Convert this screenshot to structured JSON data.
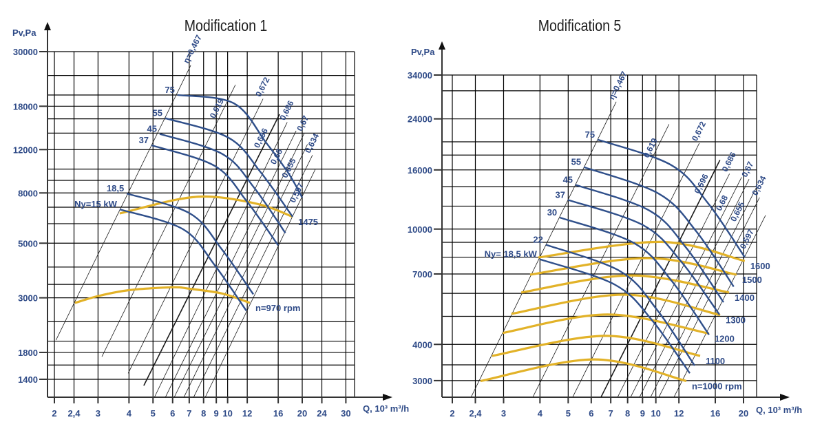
{
  "chart_data": [
    {
      "type": "line",
      "title": "Modification 1",
      "x_axis": {
        "label": "Q, 10³ m³/h",
        "scale": "log",
        "ticks": [
          2,
          2.4,
          3,
          4,
          5,
          6,
          7,
          8,
          9,
          10,
          12,
          16,
          20,
          24,
          30
        ],
        "tick_labels": [
          "2",
          "2,4",
          "3",
          "4",
          "5",
          "6",
          "7",
          "8",
          "9",
          "10",
          "12",
          "16",
          "20",
          "24",
          "30"
        ]
      },
      "y_axis": {
        "label": "Pv,Pa",
        "scale": "log",
        "ticks": [
          30000,
          18000,
          12000,
          8000,
          5000,
          3000,
          1800,
          1400
        ],
        "tick_labels": [
          "30000",
          "18000",
          "12000",
          "8000",
          "5000",
          "3000",
          "1800",
          "1400"
        ],
        "gridlines": [
          30000,
          24000,
          20000,
          18000,
          16000,
          14000,
          12000,
          10000,
          9000,
          8000,
          7000,
          6000,
          5000,
          4000,
          3400,
          3000,
          2400,
          2000,
          1800,
          1600,
          1400
        ]
      },
      "grid": true,
      "efficiency_lines": [
        {
          "label": "η=0,467",
          "points": [
            [
              2.03,
              2020
            ],
            [
              7.1,
              26400
            ]
          ]
        },
        {
          "label": "0,619",
          "points": [
            [
              3.11,
              1730
            ],
            [
              10.75,
              22000
            ]
          ]
        },
        {
          "label": "0,672",
          "points": [
            [
              3.97,
              1480
            ],
            [
              13.9,
              19300
            ]
          ]
        },
        {
          "label": "0,696",
          "bold": true,
          "points": [
            [
              4.59,
              1320
            ],
            [
              16.2,
              16700
            ]
          ]
        },
        {
          "label": "0,686",
          "points": [
            [
              5.06,
              1180
            ],
            [
              17.4,
              15500
            ]
          ]
        },
        {
          "label": "0,68",
          "points": [
            [
              5.6,
              1180
            ],
            [
              18.9,
              14300
            ]
          ]
        },
        {
          "label": "0,67",
          "points": [
            [
              6.08,
              1180
            ],
            [
              20.4,
              14000
            ]
          ]
        },
        {
          "label": "0,655",
          "points": [
            [
              6.65,
              1180
            ],
            [
              21.0,
              12600
            ]
          ]
        },
        {
          "label": "0,634",
          "points": [
            [
              7.28,
              1180
            ],
            [
              22.0,
              11400
            ]
          ]
        },
        {
          "label": "0,597",
          "points": [
            [
              8.11,
              1180
            ],
            [
              22.6,
              10000
            ]
          ]
        }
      ],
      "power_curves": [
        {
          "label": "75",
          "points": [
            [
              6.28,
              20000
            ],
            [
              10.6,
              18500
            ],
            [
              14.3,
              12800
            ],
            [
              17.7,
              9530
            ],
            [
              20,
              7660
            ]
          ]
        },
        {
          "label": "55",
          "points": [
            [
              5.6,
              16100
            ],
            [
              10.1,
              13400
            ],
            [
              13.6,
              9700
            ],
            [
              18.3,
              6400
            ]
          ]
        },
        {
          "label": "45",
          "points": [
            [
              5.32,
              13900
            ],
            [
              9.55,
              11500
            ],
            [
              12.8,
              8400
            ],
            [
              17.1,
              5500
            ]
          ]
        },
        {
          "label": "37",
          "points": [
            [
              4.93,
              12500
            ],
            [
              8.87,
              10300
            ],
            [
              11.9,
              7440
            ],
            [
              16.0,
              4900
            ]
          ]
        },
        {
          "label": "18,5",
          "points": [
            [
              3.92,
              7960
            ],
            [
              7.05,
              6600
            ],
            [
              9.46,
              4730
            ],
            [
              12.7,
              3100
            ]
          ]
        },
        {
          "label": "Ny=15 kW",
          "points": [
            [
              3.67,
              6860
            ],
            [
              6.6,
              5700
            ],
            [
              8.87,
              4070
            ],
            [
              11.9,
              2660
            ]
          ]
        }
      ],
      "speed_curves": [
        {
          "label": "1475",
          "points": [
            [
              3.67,
              6600
            ],
            [
              6.37,
              7550
            ],
            [
              8.93,
              7700
            ],
            [
              13.7,
              7150
            ],
            [
              18.3,
              6400
            ]
          ]
        },
        {
          "label": "n=970 rpm",
          "points": [
            [
              2.42,
              2860
            ],
            [
              3.01,
              3050
            ],
            [
              4.02,
              3225
            ],
            [
              6.0,
              3310
            ],
            [
              6.92,
              3270
            ],
            [
              9.53,
              3120
            ],
            [
              12.3,
              2860
            ]
          ]
        }
      ]
    },
    {
      "type": "line",
      "title": "Modification 5",
      "x_axis": {
        "label": "Q, 10³ m³/h",
        "scale": "log",
        "ticks": [
          2,
          2.4,
          3,
          4,
          5,
          6,
          7,
          8,
          9,
          10,
          12,
          16,
          20
        ],
        "tick_labels": [
          "2",
          "2,4",
          "3",
          "4",
          "5",
          "6",
          "7",
          "8",
          "9",
          "10",
          "12",
          "16",
          "20"
        ]
      },
      "y_axis": {
        "label": "Pv,Pa",
        "scale": "log",
        "ticks": [
          34000,
          24000,
          16000,
          10000,
          7000,
          4000,
          3000
        ],
        "tick_labels": [
          "34000",
          "24000",
          "16000",
          "10000",
          "7000",
          "4000",
          "3000"
        ],
        "gridlines": [
          34000,
          30000,
          24000,
          20000,
          18000,
          16000,
          14000,
          12000,
          10000,
          9000,
          8000,
          7000,
          6000,
          5000,
          4000,
          3400,
          3000
        ]
      },
      "grid": true,
      "efficiency_lines": [
        {
          "label": "η=0,467",
          "points": [
            [
              2.32,
              2630
            ],
            [
              7.31,
              27500
            ]
          ]
        },
        {
          "label": "0,619",
          "points": [
            [
              3.78,
              2630
            ],
            [
              11.1,
              23000
            ]
          ]
        },
        {
          "label": "0,672",
          "points": [
            [
              5.18,
              2630
            ],
            [
              14.1,
              19790
            ]
          ]
        },
        {
          "label": "0,696",
          "bold": true,
          "points": [
            [
              6.48,
              2630
            ],
            [
              16.6,
              17310
            ]
          ]
        },
        {
          "label": "0,686",
          "points": [
            [
              7.39,
              2630
            ],
            [
              17.9,
              15520
            ]
          ]
        },
        {
          "label": "0,68",
          "points": [
            [
              8.19,
              2630
            ],
            [
              19.7,
              15100
            ]
          ]
        },
        {
          "label": "0,67",
          "points": [
            [
              8.79,
              2630
            ],
            [
              20.9,
              14860
            ]
          ]
        },
        {
          "label": "0,655",
          "points": [
            [
              9.59,
              2630
            ],
            [
              22.1,
              13860
            ]
          ]
        },
        {
          "label": "0,634",
          "points": [
            [
              10.24,
              2630
            ],
            [
              22.7,
              12850
            ]
          ]
        },
        {
          "label": "0,597",
          "points": [
            [
              11.54,
              2630
            ],
            [
              23.8,
              11150
            ]
          ]
        }
      ],
      "power_curves": [
        {
          "label": "75",
          "points": [
            [
              6.31,
              20360
            ],
            [
              11.29,
              16630
            ],
            [
              15.11,
              12270
            ],
            [
              20.2,
              8000
            ]
          ]
        },
        {
          "label": "55",
          "points": [
            [
              5.66,
              16360
            ],
            [
              10.24,
              13240
            ],
            [
              13.78,
              9800
            ],
            [
              18.5,
              6330
            ]
          ]
        },
        {
          "label": "45",
          "points": [
            [
              5.3,
              14210
            ],
            [
              9.51,
              11580
            ],
            [
              12.73,
              8600
            ],
            [
              17.08,
              5590
            ]
          ]
        },
        {
          "label": "37",
          "points": [
            [
              4.99,
              12610
            ],
            [
              9.08,
              10290
            ],
            [
              12.25,
              7700
            ],
            [
              16.53,
              5070
            ]
          ]
        },
        {
          "label": "30",
          "points": [
            [
              4.68,
              10960
            ],
            [
              8.44,
              8930
            ],
            [
              11.35,
              6610
            ],
            [
              15.23,
              4320
            ]
          ]
        },
        {
          "label": "22",
          "points": [
            [
              4.19,
              8830
            ],
            [
              7.55,
              7150
            ],
            [
              10.13,
              5240
            ],
            [
              13.59,
              3380
            ]
          ]
        },
        {
          "label": "Ny= 18,5 kW",
          "points": [
            [
              3.99,
              7870
            ],
            [
              7.23,
              6430
            ],
            [
              9.73,
              4830
            ],
            [
              13.08,
              3180
            ]
          ]
        }
      ],
      "speed_curves": [
        {
          "label": "1600",
          "points": [
            [
              3.95,
              7980
            ],
            [
              10.41,
              9030
            ],
            [
              20.2,
              7760
            ]
          ]
        },
        {
          "label": "1500",
          "points": [
            [
              3.7,
              6960
            ],
            [
              9.34,
              7940
            ],
            [
              18.93,
              6960
            ]
          ]
        },
        {
          "label": "1400",
          "points": [
            [
              3.45,
              6040
            ],
            [
              8.24,
              6920
            ],
            [
              17.84,
              6040
            ]
          ]
        },
        {
          "label": "1300",
          "points": [
            [
              3.19,
              5100
            ],
            [
              7.8,
              5940
            ],
            [
              16.63,
              5050
            ]
          ]
        },
        {
          "label": "1200",
          "points": [
            [
              2.98,
              4380
            ],
            [
              6.84,
              5070
            ],
            [
              15.23,
              4360
            ]
          ]
        },
        {
          "label": "1100",
          "points": [
            [
              2.74,
              3650
            ],
            [
              6.73,
              4280
            ],
            [
              14.19,
              3650
            ]
          ]
        },
        {
          "label": "n=1000 rpm",
          "points": [
            [
              2.5,
              2990
            ],
            [
              6.14,
              3550
            ],
            [
              12.73,
              2990
            ]
          ]
        }
      ]
    }
  ],
  "colors": {
    "power_curve": "#2f4f8a",
    "speed_curve": "#e2b228",
    "efficiency_line": "#1a1a1a",
    "grid": "#000000",
    "text": "#2e4a87"
  }
}
